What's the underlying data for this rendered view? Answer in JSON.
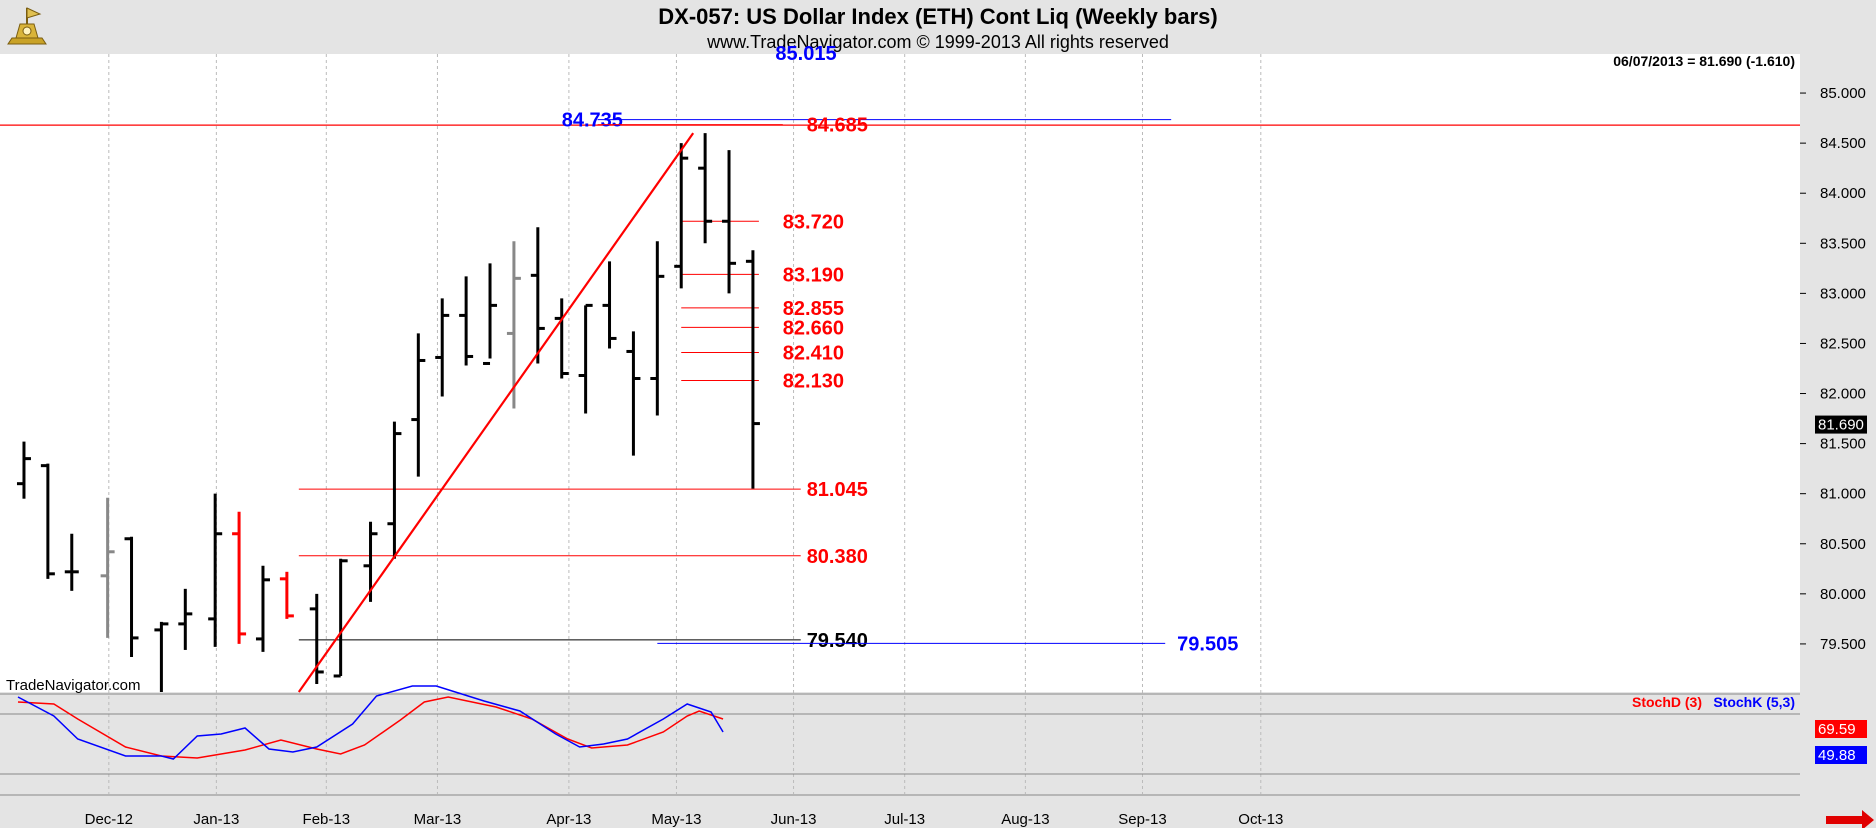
{
  "header": {
    "title": "DX-057:  US Dollar Index (ETH) Cont Liq  (Weekly bars)",
    "copyright": "www.TradeNavigator.com © 1999-2013 All rights reserved",
    "clipped_label": "85.015"
  },
  "watermark": "TradeNavigator.com",
  "last_price_note": "06/07/2013 = 81.690 (-1.610)",
  "colors": {
    "up": "#000000",
    "red": "#ff0000",
    "blue": "#0000ff",
    "gray": "#888888",
    "panel": "#ffffff",
    "frame": "#e4e4e4"
  },
  "chart_data": [
    {
      "type": "bar",
      "subtype": "ohlc",
      "title": "DX-057:  US Dollar Index (ETH) Cont Liq  (Weekly bars)",
      "ylim": [
        79.02,
        85.32
      ],
      "y_ticks": [
        "85.000",
        "84.500",
        "84.000",
        "83.500",
        "83.000",
        "82.500",
        "82.000",
        "81.500",
        "81.000",
        "80.500",
        "80.000",
        "79.500"
      ],
      "x_labels": [
        "Dec-12",
        "Jan-13",
        "Feb-13",
        "Mar-13",
        "Apr-13",
        "May-13",
        "Jun-13",
        "Jul-13",
        "Aug-13",
        "Sep-13",
        "Oct-13"
      ],
      "x_label_weeks": [
        7.6,
        16.6,
        25.8,
        35.1,
        46.1,
        55.1,
        64.9,
        74.2,
        84.3,
        94.1,
        104.0
      ],
      "bars": [
        {
          "w": 0.5,
          "o": 81.1,
          "h": 81.52,
          "l": 80.95,
          "c": 81.35,
          "color": "#000000"
        },
        {
          "w": 2.5,
          "o": 81.28,
          "h": 81.3,
          "l": 80.15,
          "c": 80.2,
          "color": "#000000"
        },
        {
          "w": 4.5,
          "o": 80.22,
          "h": 80.6,
          "l": 80.03,
          "c": 80.22,
          "color": "#000000"
        },
        {
          "w": 7.5,
          "o": 80.18,
          "h": 80.96,
          "l": 79.56,
          "c": 80.42,
          "color": "#888888"
        },
        {
          "w": 9.5,
          "o": 80.55,
          "h": 80.57,
          "l": 79.37,
          "c": 79.56,
          "color": "#000000"
        },
        {
          "w": 12.0,
          "o": 79.64,
          "h": 79.72,
          "l": 79.02,
          "c": 79.7,
          "color": "#000000"
        },
        {
          "w": 14.0,
          "o": 79.7,
          "h": 80.05,
          "l": 79.44,
          "c": 79.8,
          "color": "#000000"
        },
        {
          "w": 16.5,
          "o": 79.75,
          "h": 81.0,
          "l": 79.47,
          "c": 80.6,
          "color": "#000000"
        },
        {
          "w": 18.5,
          "o": 80.6,
          "h": 80.82,
          "l": 79.5,
          "c": 79.6,
          "color": "#ff0000"
        },
        {
          "w": 20.5,
          "o": 79.55,
          "h": 80.28,
          "l": 79.42,
          "c": 80.14,
          "color": "#000000"
        },
        {
          "w": 22.5,
          "o": 80.15,
          "h": 80.22,
          "l": 79.75,
          "c": 79.78,
          "color": "#ff0000"
        },
        {
          "w": 25.0,
          "o": 79.85,
          "h": 80.0,
          "l": 79.1,
          "c": 79.22,
          "color": "#000000"
        },
        {
          "w": 27.0,
          "o": 79.18,
          "h": 80.35,
          "l": 79.18,
          "c": 80.33,
          "color": "#000000"
        },
        {
          "w": 29.5,
          "o": 80.28,
          "h": 80.72,
          "l": 79.92,
          "c": 80.6,
          "color": "#000000"
        },
        {
          "w": 31.5,
          "o": 80.7,
          "h": 81.72,
          "l": 80.35,
          "c": 81.6,
          "color": "#000000"
        },
        {
          "w": 33.5,
          "o": 81.74,
          "h": 82.6,
          "l": 81.17,
          "c": 82.33,
          "color": "#000000"
        },
        {
          "w": 35.5,
          "o": 82.36,
          "h": 82.95,
          "l": 81.97,
          "c": 82.78,
          "color": "#000000"
        },
        {
          "w": 37.5,
          "o": 82.78,
          "h": 83.17,
          "l": 82.28,
          "c": 82.37,
          "color": "#000000"
        },
        {
          "w": 39.5,
          "o": 82.3,
          "h": 83.3,
          "l": 82.35,
          "c": 82.88,
          "color": "#000000"
        },
        {
          "w": 41.5,
          "o": 82.6,
          "h": 83.52,
          "l": 81.85,
          "c": 83.15,
          "color": "#888888"
        },
        {
          "w": 43.5,
          "o": 83.18,
          "h": 83.66,
          "l": 82.3,
          "c": 82.65,
          "color": "#000000"
        },
        {
          "w": 45.5,
          "o": 82.75,
          "h": 82.95,
          "l": 82.15,
          "c": 82.2,
          "color": "#000000"
        },
        {
          "w": 47.5,
          "o": 82.18,
          "h": 82.88,
          "l": 81.8,
          "c": 82.88,
          "color": "#000000"
        },
        {
          "w": 49.5,
          "o": 82.88,
          "h": 83.32,
          "l": 82.45,
          "c": 82.55,
          "color": "#000000"
        },
        {
          "w": 51.5,
          "o": 82.42,
          "h": 82.62,
          "l": 81.38,
          "c": 82.15,
          "color": "#000000"
        },
        {
          "w": 53.5,
          "o": 82.15,
          "h": 83.52,
          "l": 81.78,
          "c": 83.17,
          "color": "#000000"
        },
        {
          "w": 55.5,
          "o": 83.27,
          "h": 84.5,
          "l": 83.05,
          "c": 84.35,
          "color": "#000000"
        },
        {
          "w": 57.5,
          "o": 84.25,
          "h": 84.6,
          "l": 83.5,
          "c": 83.72,
          "color": "#000000"
        },
        {
          "w": 59.5,
          "o": 83.72,
          "h": 84.43,
          "l": 83.0,
          "c": 83.3,
          "color": "#000000"
        },
        {
          "w": 61.5,
          "o": 83.32,
          "h": 83.43,
          "l": 81.05,
          "c": 81.7,
          "color": "#000000"
        }
      ],
      "horizontal_levels": [
        {
          "value": 84.735,
          "label": "84.735",
          "color": "#0000ff",
          "w_from": 48.5,
          "w_to": 96.5,
          "label_w": 45.5
        },
        {
          "value": 84.685,
          "label": "84.685",
          "color": "#ff0000",
          "w_from": 48.5,
          "w_to": 64.0,
          "label_w": 66.0
        },
        {
          "value": 83.72,
          "label": "83.720",
          "color": "#ff0000",
          "w_from": 55.5,
          "w_to": 62.0,
          "label_w": 64.0
        },
        {
          "value": 83.19,
          "label": "83.190",
          "color": "#ff0000",
          "w_from": 55.5,
          "w_to": 62.0,
          "label_w": 64.0
        },
        {
          "value": 82.855,
          "label": "82.855",
          "color": "#ff0000",
          "w_from": 55.5,
          "w_to": 62.0,
          "label_w": 64.0
        },
        {
          "value": 82.66,
          "label": "82.660",
          "color": "#ff0000",
          "w_from": 55.5,
          "w_to": 62.0,
          "label_w": 64.0
        },
        {
          "value": 82.41,
          "label": "82.410",
          "color": "#ff0000",
          "w_from": 55.5,
          "w_to": 62.0,
          "label_w": 64.0
        },
        {
          "value": 82.13,
          "label": "82.130",
          "color": "#ff0000",
          "w_from": 55.5,
          "w_to": 62.0,
          "label_w": 64.0
        },
        {
          "value": 81.045,
          "label": "81.045",
          "color": "#ff0000",
          "w_from": 23.5,
          "w_to": 65.5,
          "label_w": 66.0
        },
        {
          "value": 80.38,
          "label": "80.380",
          "color": "#ff0000",
          "w_from": 23.5,
          "w_to": 65.5,
          "label_w": 66.0
        },
        {
          "value": 79.54,
          "label": "79.540",
          "color": "#000000",
          "w_from": 23.5,
          "w_to": 65.5,
          "label_w": 66.0
        },
        {
          "value": 79.505,
          "label": "79.505",
          "color": "#0000ff",
          "w_from": 53.5,
          "w_to": 96.0,
          "label_w": 97.0
        }
      ],
      "top_red_line": 84.68,
      "trend_line": {
        "from": {
          "w": 23.5,
          "v": 79.02
        },
        "to": {
          "w": 56.5,
          "v": 84.6
        }
      },
      "last_price": 81.69,
      "last_price_label": "81.690"
    },
    {
      "type": "line",
      "legend": [
        "StochD (3)",
        "StochK (5,3)"
      ],
      "ylim": [
        0,
        100
      ],
      "y_ticks": [
        "69.59",
        "49.88"
      ],
      "series": [
        {
          "name": "StochD (3)",
          "color": "#ff0000",
          "points": [
            [
              0,
              92
            ],
            [
              3,
              90
            ],
            [
              5,
              75
            ],
            [
              9,
              47
            ],
            [
              12,
              38
            ],
            [
              15,
              36
            ],
            [
              19,
              44
            ],
            [
              22,
              54
            ],
            [
              25,
              45
            ],
            [
              27,
              40
            ],
            [
              29,
              49
            ],
            [
              32,
              74
            ],
            [
              34,
              92
            ],
            [
              36,
              97
            ],
            [
              40,
              87
            ],
            [
              43,
              75
            ],
            [
              46,
              55
            ],
            [
              48,
              46
            ],
            [
              51,
              49
            ],
            [
              54,
              62
            ],
            [
              56,
              78
            ],
            [
              57,
              83
            ],
            [
              59,
              75
            ]
          ]
        },
        {
          "name": "StochK (5,3)",
          "color": "#0000ff",
          "points": [
            [
              0,
              97
            ],
            [
              3,
              78
            ],
            [
              5,
              55
            ],
            [
              9,
              38
            ],
            [
              12,
              38
            ],
            [
              13,
              35
            ],
            [
              15,
              58
            ],
            [
              17,
              60
            ],
            [
              19,
              66
            ],
            [
              21,
              45
            ],
            [
              23,
              42
            ],
            [
              25,
              47
            ],
            [
              28,
              70
            ],
            [
              30,
              98
            ],
            [
              33,
              108
            ],
            [
              35,
              108
            ],
            [
              39,
              93
            ],
            [
              42,
              83
            ],
            [
              45,
              60
            ],
            [
              47,
              47
            ],
            [
              49,
              50
            ],
            [
              51,
              55
            ],
            [
              54,
              75
            ],
            [
              56,
              90
            ],
            [
              58,
              82
            ],
            [
              59,
              62
            ]
          ]
        }
      ]
    }
  ]
}
